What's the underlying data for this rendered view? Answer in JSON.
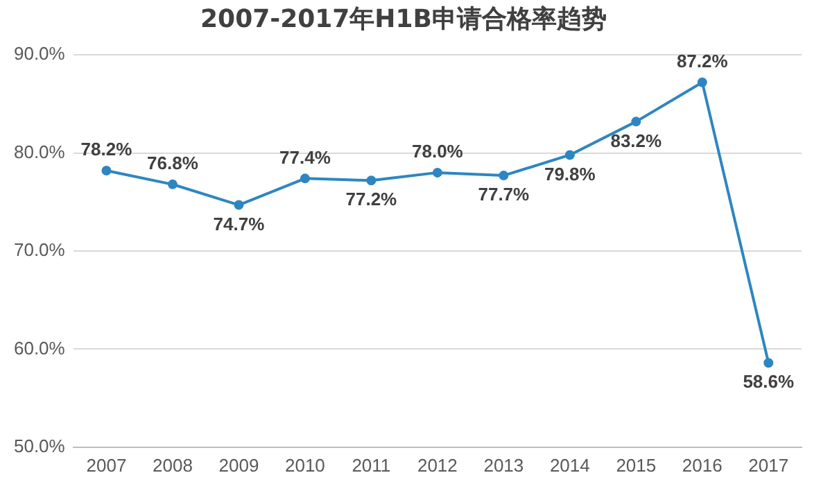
{
  "chart_data": {
    "type": "line",
    "title": "2007-2017年H1B申请合格率趋势",
    "categories": [
      "2007",
      "2008",
      "2009",
      "2010",
      "2011",
      "2012",
      "2013",
      "2014",
      "2015",
      "2016",
      "2017"
    ],
    "values": [
      78.2,
      76.8,
      74.7,
      77.4,
      77.2,
      78.0,
      77.7,
      79.8,
      83.2,
      87.2,
      58.6
    ],
    "value_labels": [
      "78.2%",
      "76.8%",
      "74.7%",
      "77.4%",
      "77.2%",
      "78.0%",
      "77.7%",
      "79.8%",
      "83.2%",
      "87.2%",
      "58.6%"
    ],
    "color": "#2e86c1",
    "marker": "circle",
    "ylim": [
      50,
      90
    ],
    "yticks": [
      {
        "value": 50,
        "label": "50.0%"
      },
      {
        "value": 60,
        "label": "60.0%"
      },
      {
        "value": 70,
        "label": "70.0%"
      },
      {
        "value": 80,
        "label": "80.0%"
      },
      {
        "value": 90,
        "label": "90.0%"
      }
    ],
    "grid": "y",
    "legend": false
  }
}
